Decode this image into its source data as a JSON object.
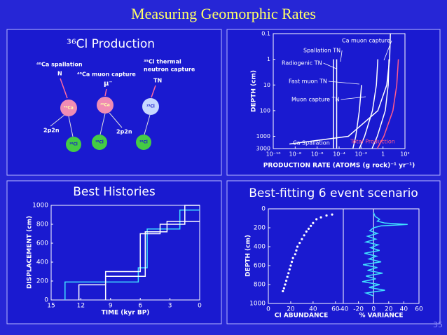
{
  "title": "Measuring Geomorphic Rates",
  "page_number": "35",
  "diagram": {
    "title": "³⁶Cl Production",
    "sources": [
      {
        "label": "⁴⁰Ca spallation",
        "particle": "N"
      },
      {
        "label": "⁴⁰Ca muon capture",
        "particle": "μ⁻"
      },
      {
        "label_lines": [
          "³⁵Cl thermal",
          "neutron capture"
        ],
        "particle": "TN"
      }
    ],
    "targets": [
      "⁴⁰Ca",
      "⁴⁰Ca",
      "³⁵Cl"
    ],
    "products": [
      "³⁶Cl",
      "³⁶Cl",
      "³⁶Cl"
    ],
    "emissions": [
      "2p2n",
      "2p2n"
    ]
  },
  "chart_data": [
    {
      "type": "line",
      "xlabel": "PRODUCTION RATE (ATOMS (g rock)⁻¹ yr⁻¹)",
      "ylabel": "DEPTH (cm)",
      "xlog": true,
      "ylog": true,
      "xlim": [
        1e-10,
        100
      ],
      "ylim": [
        3000,
        0.1
      ],
      "xticks": [
        {
          "value": 1e-10,
          "label": "10⁻¹⁰"
        },
        {
          "value": 1e-08,
          "label": "10⁻⁸"
        },
        {
          "value": 1e-06,
          "label": "10⁻⁶"
        },
        {
          "value": 0.0001,
          "label": "10⁻⁴"
        },
        {
          "value": 0.01,
          "label": "10⁻²"
        },
        1,
        {
          "value": 100,
          "label": "10²"
        }
      ],
      "yticks": [
        0.1,
        1,
        10,
        100,
        1000,
        3000
      ],
      "series": [
        {
          "name": "Ca muon capture",
          "color": "#ffffff",
          "x": [
            3.5,
            3,
            1.6,
            0.3,
            0.1
          ],
          "values": [
            1,
            10,
            100,
            1000,
            3000
          ]
        },
        {
          "name": "Spallation TN",
          "color": "#ffffff",
          "x": [
            6e-05,
            6e-05
          ],
          "values": [
            1,
            3000
          ]
        },
        {
          "name": "Radiogenic  TN",
          "color": "#ffffff",
          "x": [
            3e-05,
            3e-05
          ],
          "values": [
            1,
            3000
          ]
        },
        {
          "name": "Fast muon TN",
          "color": "#ffffff",
          "x": [
            0.011,
            0.007,
            0.0033,
            0.0018
          ],
          "values": [
            10,
            100,
            1000,
            3000
          ]
        },
        {
          "name": "Muon capture TN",
          "color": "#ffffff",
          "x": [
            0.34,
            0.25,
            0.11,
            0.021,
            0.007
          ],
          "values": [
            1,
            10,
            100,
            1000,
            3000
          ]
        },
        {
          "name": "Ca Spallation",
          "color": "#ffffff",
          "x": [
            4.7,
            4,
            2.2,
            0.34,
            0.0007,
            3e-09
          ],
          "values": [
            0.1,
            1,
            10,
            100,
            1000,
            2000
          ]
        },
        {
          "name": "Total Production",
          "color": "#ff5a8c",
          "x": [
            25,
            18,
            8,
            1.2,
            0.3
          ],
          "values": [
            1,
            10,
            100,
            1000,
            3000
          ]
        }
      ]
    },
    {
      "type": "line",
      "title": "Best Histories",
      "xlabel": "TIME (kyr BP)",
      "ylabel": "DISPLACEMENT (cm)",
      "xlim": [
        15,
        0
      ],
      "ylim": [
        0,
        1000
      ],
      "xticks": [
        15,
        12,
        9,
        6,
        3,
        0
      ],
      "yticks": [
        0,
        200,
        400,
        600,
        800,
        1000
      ],
      "series": [
        {
          "color": "#40e0ff",
          "x": [
            13.6,
            13.6,
            6.2,
            6.2,
            5.3,
            5.3,
            2.0,
            2.0,
            0
          ],
          "values": [
            0,
            190,
            190,
            340,
            340,
            750,
            750,
            950,
            950
          ]
        },
        {
          "color": "#ffffff",
          "x": [
            12.2,
            12.2,
            9.5,
            9.5,
            6.0,
            6.0,
            4.0,
            4.0,
            1.5,
            1.5,
            0
          ],
          "values": [
            0,
            160,
            160,
            300,
            300,
            700,
            700,
            800,
            800,
            1000,
            1000
          ]
        },
        {
          "color": "#ffffff",
          "x": [
            9.5,
            9.5,
            5.5,
            5.5,
            3.3,
            3.3,
            0
          ],
          "values": [
            0,
            250,
            250,
            720,
            720,
            830,
            830
          ]
        }
      ]
    },
    {
      "type": "scatter",
      "title": "Best-fitting 6 event scenario",
      "xlabel": "CI ABUNDANCE",
      "ylabel": "DEPTH (cm)",
      "xlim": [
        0,
        67
      ],
      "ylim": [
        1000,
        0
      ],
      "xticks": [
        0,
        20,
        40,
        60
      ],
      "yticks": [
        0,
        200,
        400,
        600,
        800,
        1000
      ],
      "color": "#ffffff",
      "x": [
        57,
        52,
        47,
        43,
        40,
        38,
        36,
        34,
        32,
        30,
        28,
        26,
        25,
        24,
        22,
        21,
        20,
        19,
        18,
        17,
        16,
        15,
        14,
        13
      ],
      "values": [
        60,
        70,
        90,
        110,
        150,
        180,
        210,
        240,
        280,
        320,
        360,
        400,
        440,
        480,
        520,
        560,
        600,
        640,
        680,
        720,
        760,
        800,
        840,
        870
      ]
    },
    {
      "type": "line",
      "xlabel": "% VARIANCE",
      "xlim": [
        -40,
        60
      ],
      "ylim": [
        1000,
        0
      ],
      "xticks": [
        -40,
        -20,
        0,
        20,
        40,
        60
      ],
      "xref": 0,
      "color": "#40e0ff",
      "x": [
        0,
        2,
        8,
        5,
        15,
        45,
        10,
        0,
        -5,
        5,
        -8,
        3,
        -10,
        6,
        -4,
        8,
        -12,
        4,
        -6,
        10,
        -14,
        5,
        -8,
        12,
        -10,
        3,
        -15,
        8,
        -6,
        15,
        -10,
        0
      ],
      "values": [
        40,
        80,
        110,
        130,
        150,
        165,
        180,
        200,
        230,
        260,
        290,
        320,
        350,
        380,
        410,
        440,
        470,
        500,
        530,
        560,
        590,
        620,
        650,
        680,
        710,
        740,
        770,
        800,
        830,
        860,
        890,
        920
      ]
    }
  ]
}
